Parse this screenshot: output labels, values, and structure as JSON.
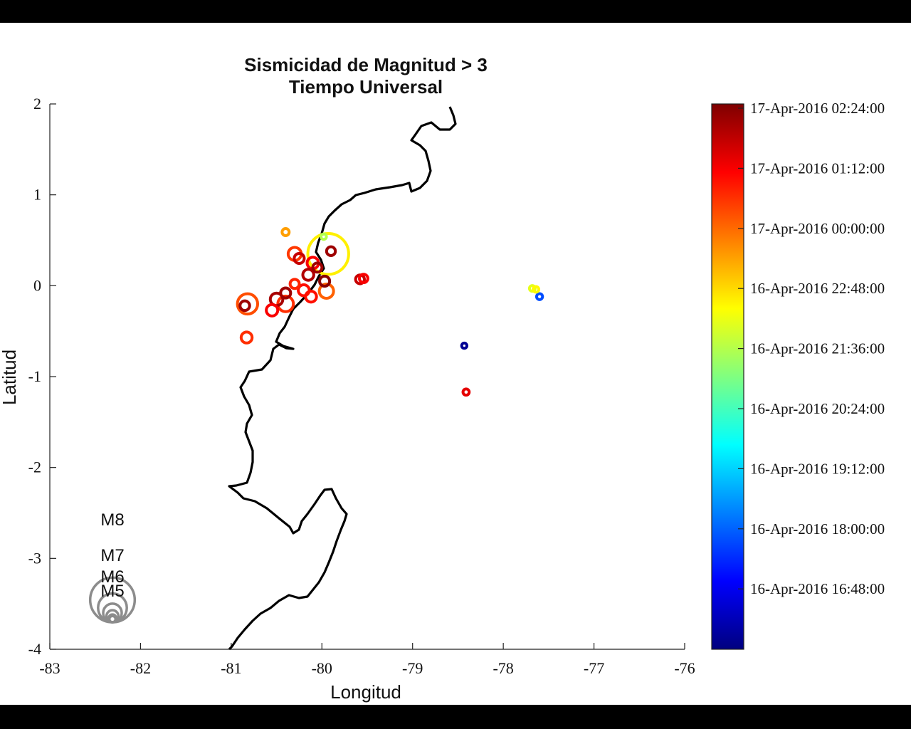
{
  "chart_data": {
    "type": "scatter",
    "title": [
      "Sismicidad de Magnitud > 3",
      "Tiempo Universal"
    ],
    "xlabel": "Longitud",
    "ylabel": "Latitud",
    "xlim": [
      -83,
      -76
    ],
    "ylim": [
      -4,
      2
    ],
    "xticks": [
      "-83",
      "-82",
      "-81",
      "-80",
      "-79",
      "-78",
      "-77",
      "-76"
    ],
    "yticks": [
      "2",
      "1",
      "0",
      "-1",
      "-2",
      "-3",
      "-4"
    ],
    "colorbar": {
      "ticks": [
        "17-Apr-2016 02:24:00",
        "17-Apr-2016 01:12:00",
        "17-Apr-2016 00:00:00",
        "16-Apr-2016 22:48:00",
        "16-Apr-2016 21:36:00",
        "16-Apr-2016 20:24:00",
        "16-Apr-2016 19:12:00",
        "16-Apr-2016 18:00:00",
        "16-Apr-2016 16:48:00"
      ],
      "colormap": "jet",
      "colors": [
        "#00007f",
        "#0000ff",
        "#0080ff",
        "#00ffff",
        "#80ff80",
        "#ffff00",
        "#ff8000",
        "#ff0000",
        "#7f0000"
      ]
    },
    "coastline_color": "#000000",
    "points": [
      {
        "lon": -79.93,
        "lat": 0.35,
        "mag": 7.8,
        "t": 0.64
      },
      {
        "lon": -79.9,
        "lat": 0.38,
        "mag": 4.3,
        "t": 0.97
      },
      {
        "lon": -79.98,
        "lat": 0.54,
        "mag": 3.2,
        "t": 0.55
      },
      {
        "lon": -80.4,
        "lat": 0.59,
        "mag": 3.8,
        "t": 0.72
      },
      {
        "lon": -80.3,
        "lat": 0.35,
        "mag": 5.2,
        "t": 0.82
      },
      {
        "lon": -80.25,
        "lat": 0.3,
        "mag": 4.6,
        "t": 0.93
      },
      {
        "lon": -80.1,
        "lat": 0.25,
        "mag": 4.9,
        "t": 0.88
      },
      {
        "lon": -80.05,
        "lat": 0.2,
        "mag": 4.4,
        "t": 0.97
      },
      {
        "lon": -80.15,
        "lat": 0.12,
        "mag": 4.8,
        "t": 0.95
      },
      {
        "lon": -79.97,
        "lat": 0.05,
        "mag": 4.6,
        "t": 0.99
      },
      {
        "lon": -80.3,
        "lat": 0.02,
        "mag": 4.4,
        "t": 0.84
      },
      {
        "lon": -80.2,
        "lat": -0.05,
        "mag": 4.8,
        "t": 0.86
      },
      {
        "lon": -80.4,
        "lat": -0.08,
        "mag": 4.6,
        "t": 0.97
      },
      {
        "lon": -80.12,
        "lat": -0.12,
        "mag": 4.8,
        "t": 0.86
      },
      {
        "lon": -79.95,
        "lat": -0.06,
        "mag": 5.4,
        "t": 0.78
      },
      {
        "lon": -80.4,
        "lat": -0.2,
        "mag": 5.6,
        "t": 0.83
      },
      {
        "lon": -80.5,
        "lat": -0.15,
        "mag": 5.1,
        "t": 0.96
      },
      {
        "lon": -80.55,
        "lat": -0.27,
        "mag": 4.9,
        "t": 0.88
      },
      {
        "lon": -80.82,
        "lat": -0.2,
        "mag": 6.2,
        "t": 0.8
      },
      {
        "lon": -80.85,
        "lat": -0.22,
        "mag": 4.5,
        "t": 0.97
      },
      {
        "lon": -80.83,
        "lat": -0.57,
        "mag": 4.8,
        "t": 0.83
      },
      {
        "lon": -79.58,
        "lat": 0.07,
        "mag": 4.3,
        "t": 0.93
      },
      {
        "lon": -79.54,
        "lat": 0.08,
        "mag": 4.2,
        "t": 0.88
      },
      {
        "lon": -77.68,
        "lat": -0.03,
        "mag": 3.3,
        "t": 0.6
      },
      {
        "lon": -77.64,
        "lat": -0.04,
        "mag": 3.3,
        "t": 0.63
      },
      {
        "lon": -77.6,
        "lat": -0.12,
        "mag": 3.4,
        "t": 0.2
      },
      {
        "lon": -78.43,
        "lat": -0.66,
        "mag": 3.1,
        "t": 0.02
      },
      {
        "lon": -78.41,
        "lat": -1.17,
        "mag": 3.5,
        "t": 0.9
      }
    ],
    "magnitude_legend": [
      {
        "label": "M8",
        "mag": 8
      },
      {
        "label": "M7",
        "mag": 7
      },
      {
        "label": "M6",
        "mag": 6
      },
      {
        "label": "M5",
        "mag": 5
      }
    ]
  }
}
